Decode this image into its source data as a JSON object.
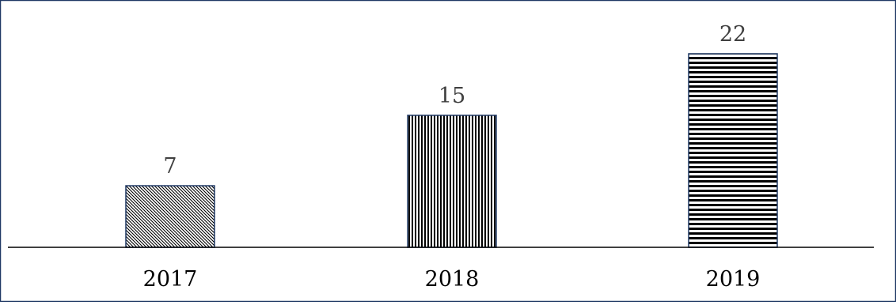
{
  "chart_data": {
    "type": "bar",
    "categories": [
      "2017",
      "2018",
      "2019"
    ],
    "values": [
      7,
      15,
      22
    ],
    "title": "",
    "xlabel": "",
    "ylabel": "",
    "ylim": [
      0,
      22
    ],
    "grid": false,
    "legend": "none",
    "data_labels": [
      "7",
      "15",
      "22"
    ],
    "colors": {
      "bar_stroke": "#1f3864",
      "frame_border": "#1f3864",
      "axis_line": "#000000",
      "label_text": "#404040",
      "tick_text": "#000000"
    },
    "bar_patterns": [
      "diagonal-hatch",
      "vertical-stripes",
      "horizontal-stripes"
    ]
  }
}
